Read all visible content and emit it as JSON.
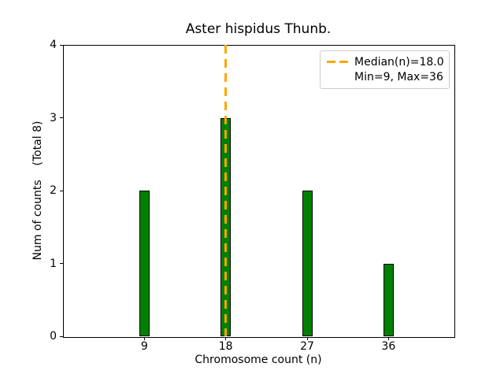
{
  "chart_data": {
    "type": "bar",
    "title": "Aster hispidus Thunb.",
    "xlabel": "Chromosome count (n)",
    "ylabel": "Num of counts    (Total 8)",
    "categories": [
      9,
      18,
      27,
      36
    ],
    "values": [
      2,
      3,
      2,
      1
    ],
    "total_counts": 8,
    "median_n": 18.0,
    "min_n": 9,
    "max_n": 36,
    "xlim": [
      0,
      43.2
    ],
    "ylim": [
      0,
      4
    ],
    "yticks": [
      0,
      1,
      2,
      3,
      4
    ],
    "grid": false,
    "legend": {
      "position": "upper right",
      "entries": [
        "Median(n)=18.0",
        "Min=9, Max=36"
      ]
    },
    "colors": {
      "bar_fill": "#008000",
      "bar_edge": "#000000",
      "median_line": "#FFA500",
      "legend_border": "#cccccc",
      "axis": "#000000",
      "text": "#000000"
    }
  }
}
